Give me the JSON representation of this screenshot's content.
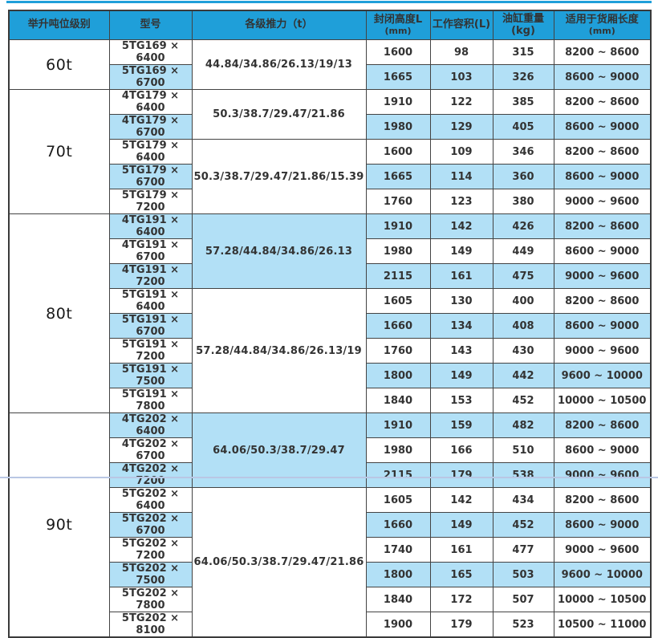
{
  "page": {
    "accent_color": "#1f9fd9",
    "stripe_color": "#b2e0f6",
    "header_bg": "#1f9fd9",
    "header_text_color": "#ffffff",
    "border_color": "#434343"
  },
  "table": {
    "columns": [
      {
        "label": "举升吨位级别"
      },
      {
        "label": "型号"
      },
      {
        "label": "各级推力（t）"
      },
      {
        "label": "封闭高度L",
        "unit": "(mm)"
      },
      {
        "label": "工作容积(L)"
      },
      {
        "label": "油缸重量(kg)"
      },
      {
        "label": "适用于货厢长度",
        "unit": "(mm)"
      }
    ],
    "sections": [
      {
        "tonnage": "60t",
        "groups": [
          {
            "thrust": "44.84/34.86/26.13/19/13",
            "shaded": false,
            "rows": [
              {
                "model": "5TG169 × 6400",
                "closed_height": "1600",
                "working_volume": "98",
                "cylinder_weight": "315",
                "cargo_length": "8200 ~ 8600",
                "shaded": false
              },
              {
                "model": "5TG169 × 6700",
                "closed_height": "1665",
                "working_volume": "103",
                "cylinder_weight": "326",
                "cargo_length": "8600 ~ 9000",
                "shaded": true
              }
            ]
          }
        ]
      },
      {
        "tonnage": "70t",
        "groups": [
          {
            "thrust": "50.3/38.7/29.47/21.86",
            "shaded": false,
            "rows": [
              {
                "model": "4TG179 × 6400",
                "closed_height": "1910",
                "working_volume": "122",
                "cylinder_weight": "385",
                "cargo_length": "8200 ~ 8600",
                "shaded": false
              },
              {
                "model": "4TG179 × 6700",
                "closed_height": "1980",
                "working_volume": "129",
                "cylinder_weight": "405",
                "cargo_length": "8600 ~ 9000",
                "shaded": true
              }
            ]
          },
          {
            "thrust": "50.3/38.7/29.47/21.86/15.39",
            "shaded": false,
            "rows": [
              {
                "model": "5TG179 × 6400",
                "closed_height": "1600",
                "working_volume": "109",
                "cylinder_weight": "346",
                "cargo_length": "8200 ~ 8600",
                "shaded": false
              },
              {
                "model": "5TG179 × 6700",
                "closed_height": "1665",
                "working_volume": "114",
                "cylinder_weight": "360",
                "cargo_length": "8600 ~ 9000",
                "shaded": true
              },
              {
                "model": "5TG179 × 7200",
                "closed_height": "1760",
                "working_volume": "123",
                "cylinder_weight": "380",
                "cargo_length": "9000 ~ 9600",
                "shaded": false
              }
            ]
          }
        ]
      },
      {
        "tonnage": "80t",
        "groups": [
          {
            "thrust": "57.28/44.84/34.86/26.13",
            "shaded": true,
            "rows": [
              {
                "model": "4TG191 × 6400",
                "closed_height": "1910",
                "working_volume": "142",
                "cylinder_weight": "426",
                "cargo_length": "8200 ~ 8600",
                "shaded": true
              },
              {
                "model": "4TG191 × 6700",
                "closed_height": "1980",
                "working_volume": "149",
                "cylinder_weight": "449",
                "cargo_length": "8600 ~ 9000",
                "shaded": false
              },
              {
                "model": "4TG191 × 7200",
                "closed_height": "2115",
                "working_volume": "161",
                "cylinder_weight": "475",
                "cargo_length": "9000 ~ 9600",
                "shaded": true
              }
            ]
          },
          {
            "thrust": "57.28/44.84/34.86/26.13/19",
            "shaded": false,
            "rows": [
              {
                "model": "5TG191 × 6400",
                "closed_height": "1605",
                "working_volume": "130",
                "cylinder_weight": "400",
                "cargo_length": "8200 ~ 8600",
                "shaded": false
              },
              {
                "model": "5TG191 × 6700",
                "closed_height": "1660",
                "working_volume": "134",
                "cylinder_weight": "408",
                "cargo_length": "8600 ~ 9000",
                "shaded": true
              },
              {
                "model": "5TG191 × 7200",
                "closed_height": "1760",
                "working_volume": "143",
                "cylinder_weight": "430",
                "cargo_length": "9000 ~ 9600",
                "shaded": false
              },
              {
                "model": "5TG191 × 7500",
                "closed_height": "1800",
                "working_volume": "149",
                "cylinder_weight": "442",
                "cargo_length": "9600 ~ 10000",
                "shaded": true
              },
              {
                "model": "5TG191 × 7800",
                "closed_height": "1840",
                "working_volume": "153",
                "cylinder_weight": "452",
                "cargo_length": "10000 ~ 10500",
                "shaded": false
              }
            ]
          }
        ]
      },
      {
        "tonnage": "90t",
        "groups": [
          {
            "thrust": "64.06/50.3/38.7/29.47",
            "shaded": true,
            "rows": [
              {
                "model": "4TG202 × 6400",
                "closed_height": "1910",
                "working_volume": "159",
                "cylinder_weight": "482",
                "cargo_length": "8200 ~ 8600",
                "shaded": true
              },
              {
                "model": "4TG202 × 6700",
                "closed_height": "1980",
                "working_volume": "166",
                "cylinder_weight": "510",
                "cargo_length": "8600 ~ 9000",
                "shaded": false
              },
              {
                "model": "4TG202 × 7200",
                "closed_height": "2115",
                "working_volume": "179",
                "cylinder_weight": "538",
                "cargo_length": "9000 ~ 9600",
                "shaded": true
              }
            ]
          },
          {
            "thrust": "64.06/50.3/38.7/29.47/21.86",
            "shaded": false,
            "rows": [
              {
                "model": "5TG202 × 6400",
                "closed_height": "1605",
                "working_volume": "142",
                "cylinder_weight": "434",
                "cargo_length": "8200 ~ 8600",
                "shaded": false
              },
              {
                "model": "5TG202 × 6700",
                "closed_height": "1660",
                "working_volume": "149",
                "cylinder_weight": "452",
                "cargo_length": "8600 ~ 9000",
                "shaded": true
              },
              {
                "model": "5TG202 × 7200",
                "closed_height": "1740",
                "working_volume": "161",
                "cylinder_weight": "477",
                "cargo_length": "9000 ~ 9600",
                "shaded": false
              },
              {
                "model": "5TG202 × 7500",
                "closed_height": "1800",
                "working_volume": "165",
                "cylinder_weight": "503",
                "cargo_length": "9600 ~ 10000",
                "shaded": true
              },
              {
                "model": "5TG202 × 7800",
                "closed_height": "1840",
                "working_volume": "172",
                "cylinder_weight": "507",
                "cargo_length": "10000 ~ 10500",
                "shaded": false
              },
              {
                "model": "5TG202 × 8100",
                "closed_height": "1900",
                "working_volume": "179",
                "cylinder_weight": "523",
                "cargo_length": "10500 ~ 11000",
                "shaded": false
              }
            ]
          }
        ]
      }
    ]
  }
}
